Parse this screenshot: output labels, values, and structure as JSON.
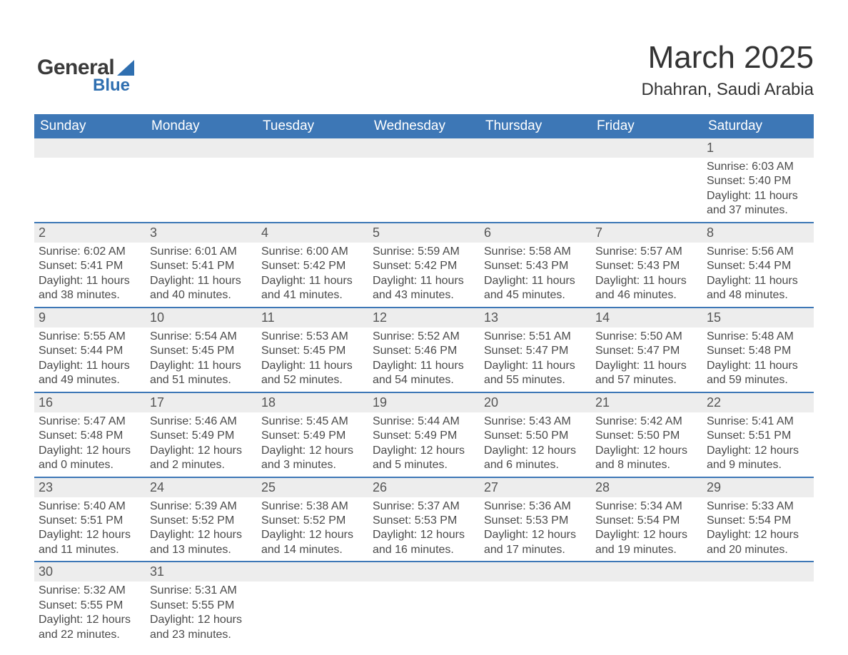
{
  "logo": {
    "word1": "General",
    "word2": "Blue",
    "triangle_color": "#2f6fb0",
    "word1_color": "#3a3a3a",
    "word2_color": "#2f6fb0"
  },
  "title": "March 2025",
  "location": "Dhahran, Saudi Arabia",
  "colors": {
    "header_bg": "#3d77b6",
    "header_text": "#ffffff",
    "strip_bg": "#ededed",
    "row_divider": "#3d77b6",
    "text": "#4a4a4a",
    "background": "#ffffff"
  },
  "typography": {
    "title_fontsize": 44,
    "location_fontsize": 24,
    "dow_fontsize": 19,
    "daynum_fontsize": 18,
    "body_fontsize": 16,
    "font_family": "Arial"
  },
  "days_of_week": [
    "Sunday",
    "Monday",
    "Tuesday",
    "Wednesday",
    "Thursday",
    "Friday",
    "Saturday"
  ],
  "weeks": [
    [
      {
        "day": null
      },
      {
        "day": null
      },
      {
        "day": null
      },
      {
        "day": null
      },
      {
        "day": null
      },
      {
        "day": null
      },
      {
        "day": "1",
        "sunrise": "Sunrise: 6:03 AM",
        "sunset": "Sunset: 5:40 PM",
        "daylight1": "Daylight: 11 hours",
        "daylight2": "and 37 minutes."
      }
    ],
    [
      {
        "day": "2",
        "sunrise": "Sunrise: 6:02 AM",
        "sunset": "Sunset: 5:41 PM",
        "daylight1": "Daylight: 11 hours",
        "daylight2": "and 38 minutes."
      },
      {
        "day": "3",
        "sunrise": "Sunrise: 6:01 AM",
        "sunset": "Sunset: 5:41 PM",
        "daylight1": "Daylight: 11 hours",
        "daylight2": "and 40 minutes."
      },
      {
        "day": "4",
        "sunrise": "Sunrise: 6:00 AM",
        "sunset": "Sunset: 5:42 PM",
        "daylight1": "Daylight: 11 hours",
        "daylight2": "and 41 minutes."
      },
      {
        "day": "5",
        "sunrise": "Sunrise: 5:59 AM",
        "sunset": "Sunset: 5:42 PM",
        "daylight1": "Daylight: 11 hours",
        "daylight2": "and 43 minutes."
      },
      {
        "day": "6",
        "sunrise": "Sunrise: 5:58 AM",
        "sunset": "Sunset: 5:43 PM",
        "daylight1": "Daylight: 11 hours",
        "daylight2": "and 45 minutes."
      },
      {
        "day": "7",
        "sunrise": "Sunrise: 5:57 AM",
        "sunset": "Sunset: 5:43 PM",
        "daylight1": "Daylight: 11 hours",
        "daylight2": "and 46 minutes."
      },
      {
        "day": "8",
        "sunrise": "Sunrise: 5:56 AM",
        "sunset": "Sunset: 5:44 PM",
        "daylight1": "Daylight: 11 hours",
        "daylight2": "and 48 minutes."
      }
    ],
    [
      {
        "day": "9",
        "sunrise": "Sunrise: 5:55 AM",
        "sunset": "Sunset: 5:44 PM",
        "daylight1": "Daylight: 11 hours",
        "daylight2": "and 49 minutes."
      },
      {
        "day": "10",
        "sunrise": "Sunrise: 5:54 AM",
        "sunset": "Sunset: 5:45 PM",
        "daylight1": "Daylight: 11 hours",
        "daylight2": "and 51 minutes."
      },
      {
        "day": "11",
        "sunrise": "Sunrise: 5:53 AM",
        "sunset": "Sunset: 5:45 PM",
        "daylight1": "Daylight: 11 hours",
        "daylight2": "and 52 minutes."
      },
      {
        "day": "12",
        "sunrise": "Sunrise: 5:52 AM",
        "sunset": "Sunset: 5:46 PM",
        "daylight1": "Daylight: 11 hours",
        "daylight2": "and 54 minutes."
      },
      {
        "day": "13",
        "sunrise": "Sunrise: 5:51 AM",
        "sunset": "Sunset: 5:47 PM",
        "daylight1": "Daylight: 11 hours",
        "daylight2": "and 55 minutes."
      },
      {
        "day": "14",
        "sunrise": "Sunrise: 5:50 AM",
        "sunset": "Sunset: 5:47 PM",
        "daylight1": "Daylight: 11 hours",
        "daylight2": "and 57 minutes."
      },
      {
        "day": "15",
        "sunrise": "Sunrise: 5:48 AM",
        "sunset": "Sunset: 5:48 PM",
        "daylight1": "Daylight: 11 hours",
        "daylight2": "and 59 minutes."
      }
    ],
    [
      {
        "day": "16",
        "sunrise": "Sunrise: 5:47 AM",
        "sunset": "Sunset: 5:48 PM",
        "daylight1": "Daylight: 12 hours",
        "daylight2": "and 0 minutes."
      },
      {
        "day": "17",
        "sunrise": "Sunrise: 5:46 AM",
        "sunset": "Sunset: 5:49 PM",
        "daylight1": "Daylight: 12 hours",
        "daylight2": "and 2 minutes."
      },
      {
        "day": "18",
        "sunrise": "Sunrise: 5:45 AM",
        "sunset": "Sunset: 5:49 PM",
        "daylight1": "Daylight: 12 hours",
        "daylight2": "and 3 minutes."
      },
      {
        "day": "19",
        "sunrise": "Sunrise: 5:44 AM",
        "sunset": "Sunset: 5:49 PM",
        "daylight1": "Daylight: 12 hours",
        "daylight2": "and 5 minutes."
      },
      {
        "day": "20",
        "sunrise": "Sunrise: 5:43 AM",
        "sunset": "Sunset: 5:50 PM",
        "daylight1": "Daylight: 12 hours",
        "daylight2": "and 6 minutes."
      },
      {
        "day": "21",
        "sunrise": "Sunrise: 5:42 AM",
        "sunset": "Sunset: 5:50 PM",
        "daylight1": "Daylight: 12 hours",
        "daylight2": "and 8 minutes."
      },
      {
        "day": "22",
        "sunrise": "Sunrise: 5:41 AM",
        "sunset": "Sunset: 5:51 PM",
        "daylight1": "Daylight: 12 hours",
        "daylight2": "and 9 minutes."
      }
    ],
    [
      {
        "day": "23",
        "sunrise": "Sunrise: 5:40 AM",
        "sunset": "Sunset: 5:51 PM",
        "daylight1": "Daylight: 12 hours",
        "daylight2": "and 11 minutes."
      },
      {
        "day": "24",
        "sunrise": "Sunrise: 5:39 AM",
        "sunset": "Sunset: 5:52 PM",
        "daylight1": "Daylight: 12 hours",
        "daylight2": "and 13 minutes."
      },
      {
        "day": "25",
        "sunrise": "Sunrise: 5:38 AM",
        "sunset": "Sunset: 5:52 PM",
        "daylight1": "Daylight: 12 hours",
        "daylight2": "and 14 minutes."
      },
      {
        "day": "26",
        "sunrise": "Sunrise: 5:37 AM",
        "sunset": "Sunset: 5:53 PM",
        "daylight1": "Daylight: 12 hours",
        "daylight2": "and 16 minutes."
      },
      {
        "day": "27",
        "sunrise": "Sunrise: 5:36 AM",
        "sunset": "Sunset: 5:53 PM",
        "daylight1": "Daylight: 12 hours",
        "daylight2": "and 17 minutes."
      },
      {
        "day": "28",
        "sunrise": "Sunrise: 5:34 AM",
        "sunset": "Sunset: 5:54 PM",
        "daylight1": "Daylight: 12 hours",
        "daylight2": "and 19 minutes."
      },
      {
        "day": "29",
        "sunrise": "Sunrise: 5:33 AM",
        "sunset": "Sunset: 5:54 PM",
        "daylight1": "Daylight: 12 hours",
        "daylight2": "and 20 minutes."
      }
    ],
    [
      {
        "day": "30",
        "sunrise": "Sunrise: 5:32 AM",
        "sunset": "Sunset: 5:55 PM",
        "daylight1": "Daylight: 12 hours",
        "daylight2": "and 22 minutes."
      },
      {
        "day": "31",
        "sunrise": "Sunrise: 5:31 AM",
        "sunset": "Sunset: 5:55 PM",
        "daylight1": "Daylight: 12 hours",
        "daylight2": "and 23 minutes."
      },
      {
        "day": null
      },
      {
        "day": null
      },
      {
        "day": null
      },
      {
        "day": null
      },
      {
        "day": null
      }
    ]
  ]
}
